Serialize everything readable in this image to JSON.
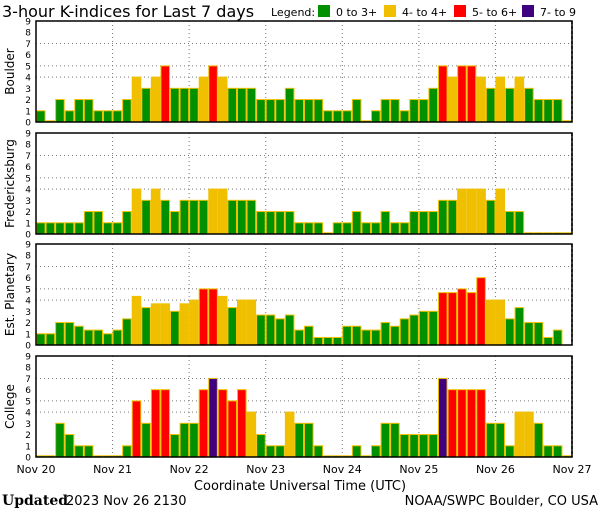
{
  "chart_data": {
    "type": "bar",
    "title": "3-hour K-indices for Last 7 days",
    "legend": {
      "label": "Legend:",
      "position": "top-right",
      "entries": [
        {
          "label": "0 to 3+",
          "color": "#009000"
        },
        {
          "label": "4- to 4+",
          "color": "#f0c000"
        },
        {
          "label": "5- to 6+",
          "color": "#ff0000"
        },
        {
          "label": "7- to 9",
          "color": "#400080"
        }
      ]
    },
    "xlabel": "Coordinate Universal Time (UTC)",
    "x_ticks": [
      "Nov 20",
      "Nov 21",
      "Nov 22",
      "Nov 23",
      "Nov 24",
      "Nov 25",
      "Nov 26",
      "Nov 27"
    ],
    "y_ticks": [
      "0",
      "1",
      "2",
      "3",
      "4",
      "5",
      "6",
      "7",
      "8",
      "9"
    ],
    "ylim": [
      0,
      9
    ],
    "gridlines_y": [
      4,
      5,
      7
    ],
    "bars_per_day": 8,
    "outline_color": "#f0c000",
    "series": [
      {
        "name": "Boulder",
        "values": [
          1,
          0,
          2,
          1,
          2,
          2,
          1,
          1,
          1,
          2,
          4,
          3,
          4,
          5,
          3,
          3,
          3,
          4,
          5,
          4,
          3,
          3,
          3,
          2,
          2,
          2,
          3,
          2,
          2,
          2,
          1,
          1,
          1,
          2,
          0,
          1,
          2,
          2,
          1,
          2,
          2,
          3,
          5,
          4,
          5,
          5,
          4,
          3,
          4,
          3,
          4,
          3,
          2,
          2,
          2,
          0
        ]
      },
      {
        "name": "Fredericksburg",
        "values": [
          1,
          1,
          1,
          1,
          1,
          2,
          2,
          1,
          1,
          2,
          4,
          3,
          4,
          3,
          2,
          3,
          3,
          3,
          4,
          4,
          3,
          3,
          3,
          2,
          2,
          2,
          2,
          1,
          1,
          1,
          0,
          1,
          1,
          2,
          1,
          1,
          2,
          1,
          1,
          2,
          2,
          2,
          3,
          3,
          4,
          4,
          4,
          3,
          4,
          2,
          2,
          0,
          0,
          0,
          0,
          0
        ]
      },
      {
        "name": "Est. Planetary",
        "values": [
          1,
          1,
          2,
          2,
          1.67,
          1.33,
          1.33,
          1,
          1.33,
          2.33,
          4.33,
          3.33,
          3.67,
          3.67,
          3,
          3.67,
          4,
          5,
          5,
          4.33,
          3.33,
          4,
          4,
          2.67,
          2.67,
          2.33,
          2.67,
          1.33,
          1.67,
          0.67,
          0.67,
          0.67,
          1.67,
          1.67,
          1.33,
          1.33,
          2,
          1.67,
          2.33,
          2.67,
          3,
          3,
          4.67,
          4.67,
          5,
          4.67,
          6,
          4,
          4,
          2.33,
          3.33,
          2,
          2,
          0.67,
          1.33,
          null
        ]
      },
      {
        "name": "College",
        "values": [
          0,
          0,
          3,
          2,
          1,
          1,
          0,
          0,
          0,
          1,
          5,
          3,
          6,
          6,
          2,
          3,
          3,
          6,
          7,
          6,
          5,
          6,
          4,
          2,
          1,
          1,
          4,
          3,
          3,
          1,
          0,
          0,
          0,
          1,
          0,
          1,
          3,
          3,
          2,
          2,
          2,
          2,
          7,
          6,
          6,
          6,
          6,
          3,
          3,
          1,
          4,
          4,
          3,
          1,
          1,
          0
        ]
      }
    ]
  },
  "footer": {
    "updated_label": "Updated",
    "updated_value": "2023 Nov 26 2130",
    "source": "NOAA/SWPC Boulder, CO USA"
  }
}
